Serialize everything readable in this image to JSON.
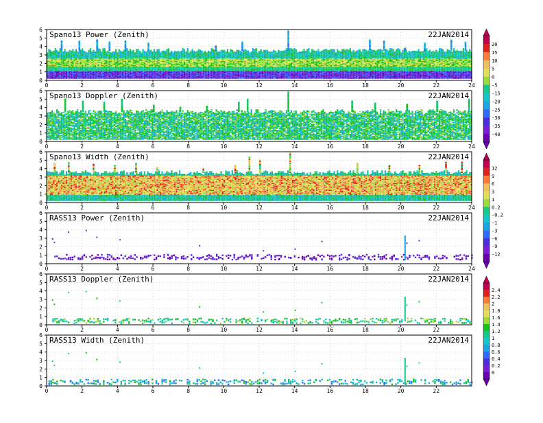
{
  "chart_data": [
    {
      "type": "heatmap",
      "title": "Spano13 Power (Zenith)",
      "date": "22JAN2014",
      "x_ticks": [
        "0",
        "2",
        "4",
        "6",
        "8",
        "10",
        "12",
        "14",
        "16",
        "18",
        "20",
        "22",
        "24"
      ],
      "y_ticks": [
        "0",
        "1",
        "2",
        "3",
        "4",
        "5",
        "6"
      ],
      "xlim": [
        0,
        24
      ],
      "ylim": [
        0,
        6
      ],
      "colorbar": {
        "group": 1,
        "labels": [
          "20",
          "15",
          "10",
          "5",
          "0",
          "-5",
          "-15",
          "-20",
          "-25",
          "-30",
          "-35",
          "-40"
        ]
      },
      "summary": {
        "hours": [
          0,
          2,
          4,
          6,
          8,
          10,
          12,
          14,
          16,
          18,
          20,
          22,
          24
        ],
        "profile": {
          "heights": [
            0.5,
            1,
            2,
            3,
            4
          ],
          "values": [
            -30,
            -20,
            -5,
            -15,
            -25
          ]
        },
        "typical_top": 3.5,
        "spikes": [
          [
            0.8,
            4.6
          ],
          [
            1.8,
            4.7
          ],
          [
            2.8,
            4.8
          ],
          [
            3.5,
            4.5
          ],
          [
            4.4,
            4.6
          ],
          [
            5.7,
            4.4
          ],
          [
            9.5,
            4.0
          ],
          [
            11.0,
            4.5
          ],
          [
            13.6,
            5.8
          ],
          [
            18.2,
            4.8
          ],
          [
            19.0,
            4.6
          ],
          [
            20.2,
            3.8
          ],
          [
            21.3,
            4.4
          ],
          [
            22.8,
            4.8
          ],
          [
            23.6,
            4.5
          ]
        ]
      }
    },
    {
      "type": "heatmap",
      "title": "Spano13 Doppler (Zenith)",
      "date": "22JAN2014",
      "x_ticks": [
        "0",
        "2",
        "4",
        "6",
        "8",
        "10",
        "12",
        "14",
        "16",
        "18",
        "20",
        "22",
        "24"
      ],
      "y_ticks": [
        "0",
        "1",
        "2",
        "3",
        "4",
        "5",
        "6"
      ],
      "xlim": [
        0,
        24
      ],
      "ylim": [
        0,
        6
      ],
      "summary": {
        "hours": [
          0,
          2,
          4,
          6,
          8,
          10,
          12,
          14,
          16,
          18,
          20,
          22,
          24
        ],
        "typical_top": 3.5,
        "spikes": [
          [
            1.0,
            5.0
          ],
          [
            2.0,
            4.8
          ],
          [
            3.2,
            4.6
          ],
          [
            4.2,
            5.0
          ],
          [
            6.0,
            4.3
          ],
          [
            7.5,
            4.0
          ],
          [
            9.0,
            4.2
          ],
          [
            10.8,
            4.6
          ],
          [
            11.3,
            5.0
          ],
          [
            13.6,
            5.8
          ],
          [
            17.2,
            4.8
          ],
          [
            18.5,
            4.5
          ],
          [
            20.3,
            4.4
          ],
          [
            22.0,
            4.8
          ],
          [
            23.8,
            5.0
          ]
        ]
      }
    },
    {
      "type": "heatmap",
      "title": "Spano13 Width (Zenith)",
      "date": "22JAN2014",
      "x_ticks": [
        "0",
        "2",
        "4",
        "6",
        "8",
        "10",
        "12",
        "14",
        "16",
        "18",
        "20",
        "22",
        "24"
      ],
      "y_ticks": [
        "0",
        "1",
        "2",
        "3",
        "4",
        "5",
        "6"
      ],
      "xlim": [
        0,
        24
      ],
      "ylim": [
        0,
        6
      ],
      "colorbar": {
        "group": 2,
        "labels": [
          "12",
          "9",
          "6",
          "3",
          "1",
          "0.2",
          "-0.2",
          "-1",
          "-3",
          "-6",
          "-9",
          "-12"
        ]
      },
      "summary": {
        "hours": [
          0,
          2,
          4,
          6,
          8,
          10,
          12,
          14,
          16,
          18,
          20,
          22,
          24
        ],
        "typical_top": 3.5,
        "spikes": [
          [
            0.4,
            4.6
          ],
          [
            1.2,
            4.8
          ],
          [
            2.6,
            4.5
          ],
          [
            3.8,
            4.4
          ],
          [
            5.0,
            4.6
          ],
          [
            6.2,
            4.2
          ],
          [
            8.8,
            4.0
          ],
          [
            10.6,
            4.4
          ],
          [
            11.4,
            5.4
          ],
          [
            12.0,
            5.0
          ],
          [
            13.7,
            5.8
          ],
          [
            17.5,
            4.6
          ],
          [
            19.3,
            4.4
          ],
          [
            21.0,
            4.4
          ],
          [
            22.5,
            4.8
          ],
          [
            23.4,
            4.8
          ]
        ]
      }
    },
    {
      "type": "heatmap",
      "title": "RASS13 Power (Zenith)",
      "date": "22JAN2014",
      "x_ticks": [
        "0",
        "2",
        "4",
        "6",
        "8",
        "10",
        "12",
        "14",
        "16",
        "18",
        "20",
        "22",
        "24"
      ],
      "y_ticks": [
        "0",
        "1",
        "2",
        "3",
        "4",
        "5",
        "6"
      ],
      "xlim": [
        0,
        24
      ],
      "ylim": [
        0,
        6
      ],
      "summary": {
        "hours": [
          0,
          2,
          4,
          6,
          8,
          10,
          12,
          14,
          16,
          18,
          20,
          22,
          24
        ],
        "band_height": 0.8,
        "outliers": [
          [
            0.3,
            3.0
          ],
          [
            0.4,
            2.6
          ],
          [
            1.2,
            3.8
          ],
          [
            2.2,
            4.0
          ],
          [
            2.8,
            3.2
          ],
          [
            4.1,
            2.9
          ],
          [
            8.6,
            2.2
          ],
          [
            12.2,
            1.6
          ],
          [
            14.0,
            1.8
          ],
          [
            15.5,
            2.7
          ],
          [
            20.2,
            3.3
          ],
          [
            20.3,
            2.5
          ],
          [
            21.0,
            2.8
          ]
        ]
      }
    },
    {
      "type": "heatmap",
      "title": "RASS13 Doppler (Zenith)",
      "date": "22JAN2014",
      "x_ticks": [
        "0",
        "2",
        "4",
        "6",
        "8",
        "10",
        "12",
        "14",
        "16",
        "18",
        "20",
        "22"
      ],
      "y_ticks": [
        "0",
        "1",
        "2",
        "3",
        "4",
        "5",
        "6"
      ],
      "xlim": [
        0,
        24
      ],
      "ylim": [
        0,
        6
      ],
      "colorbar": {
        "group": 3,
        "labels": [
          "2.4",
          "2.2",
          "2",
          "1.8",
          "1.6",
          "1.4",
          "1.2",
          "1",
          "0.8",
          "0.6",
          "0.4",
          "0.2",
          "0"
        ]
      },
      "summary": {
        "hours": [
          0,
          2,
          4,
          6,
          8,
          10,
          12,
          14,
          16,
          18,
          20,
          22,
          24
        ],
        "band_height": 0.5,
        "outliers": [
          [
            0.3,
            3.0
          ],
          [
            0.4,
            2.5
          ],
          [
            1.2,
            3.9
          ],
          [
            2.2,
            4.0
          ],
          [
            2.8,
            3.2
          ],
          [
            4.1,
            2.9
          ],
          [
            8.6,
            2.2
          ],
          [
            12.2,
            1.6
          ],
          [
            14.0,
            1.8
          ],
          [
            15.5,
            2.7
          ],
          [
            20.2,
            3.3
          ],
          [
            20.3,
            2.4
          ],
          [
            21.0,
            2.8
          ]
        ]
      }
    },
    {
      "type": "heatmap",
      "title": "RASS13 Width (Zenith)",
      "date": "22JAN2014",
      "x_ticks": [
        "0",
        "2",
        "4",
        "6",
        "8",
        "10",
        "12",
        "14",
        "16",
        "18",
        "20",
        "22"
      ],
      "y_ticks": [
        "0",
        "1",
        "2",
        "3",
        "4",
        "5",
        "6"
      ],
      "xlim": [
        0,
        24
      ],
      "ylim": [
        0,
        6
      ],
      "summary": {
        "hours": [
          0,
          2,
          4,
          6,
          8,
          10,
          12,
          14,
          16,
          18,
          20,
          22,
          24
        ],
        "band_height": 0.5,
        "outliers": [
          [
            0.3,
            3.0
          ],
          [
            0.4,
            2.5
          ],
          [
            1.2,
            3.9
          ],
          [
            2.2,
            4.0
          ],
          [
            2.8,
            3.2
          ],
          [
            4.1,
            2.9
          ],
          [
            8.6,
            2.2
          ],
          [
            12.2,
            1.6
          ],
          [
            14.0,
            1.8
          ],
          [
            15.5,
            2.7
          ],
          [
            20.2,
            3.3
          ],
          [
            20.3,
            2.4
          ],
          [
            21.0,
            2.8
          ]
        ]
      }
    }
  ],
  "colors": {
    "scale": [
      "#6a00b0",
      "#7a1fd6",
      "#4b2ee0",
      "#2f6bff",
      "#1aa6e6",
      "#13c7c7",
      "#14c98a",
      "#18c21a",
      "#9bdc3c",
      "#e0e05a",
      "#f0c060",
      "#ff7a3a",
      "#e02020",
      "#c00050"
    ],
    "axis": "#000000",
    "grid": "#bbbbbb"
  }
}
